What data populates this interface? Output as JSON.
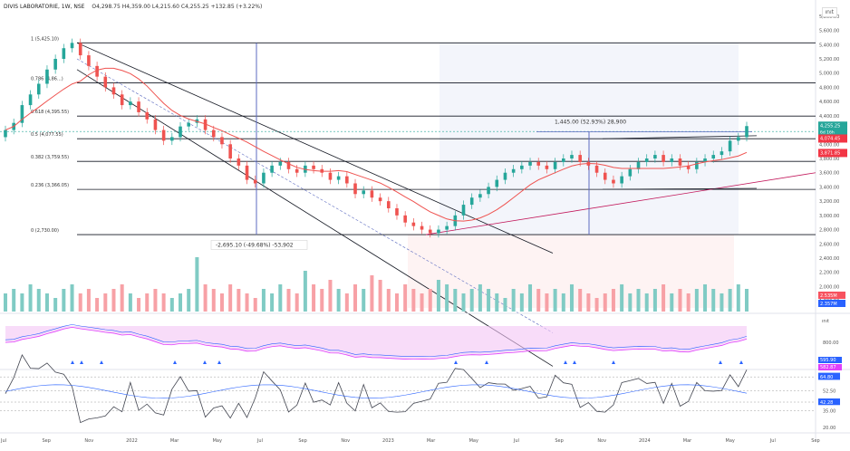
{
  "header": {
    "symbol": "DIVIS LABORATORIE, 1W, NSE",
    "ohlc": "O4,298.75 H4,359.00 L4,215.60 C4,255.25 +132.85 (+3.22%)",
    "scale_button": "ınıt"
  },
  "price_axis": {
    "labels": [
      "5,800.00",
      "5,600.00",
      "5,400.00",
      "5,200.00",
      "5,000.00",
      "4,800.00",
      "4,600.00",
      "4,400.00",
      "4,200.00",
      "4,000.00",
      "3,800.00",
      "3,600.00",
      "3,400.00",
      "3,200.00",
      "3,000.00",
      "2,800.00",
      "2,600.00",
      "2,400.00",
      "2,200.00",
      "2,000.00",
      "1,800.00"
    ],
    "badges": [
      {
        "text": "4,255.25",
        "sub": "6d 16h",
        "color": "#26a69a"
      },
      {
        "text": "4,074.45",
        "color": "#f23645"
      },
      {
        "text": "3,871.85",
        "color": "#f23645"
      }
    ]
  },
  "volume_axis": {
    "badges": [
      {
        "text": "2.535M",
        "color": "#f7525f"
      },
      {
        "text": "2.357M",
        "color": "#2962ff"
      }
    ]
  },
  "indicator1_axis": {
    "labels": [
      "800.00"
    ],
    "badges": [
      {
        "text": "595.90",
        "color": "#2962ff"
      },
      {
        "text": "582.87",
        "color": "#e040fb"
      }
    ],
    "scale_button": "ınıt"
  },
  "indicator2_axis": {
    "labels": [
      "65.00",
      "52.50",
      "42.50",
      "35.00",
      "20.00"
    ],
    "badges": [
      {
        "text": "65.46",
        "color": "#2962ff"
      },
      {
        "text": "64.80",
        "color": "#2962ff"
      },
      {
        "text": "42.50",
        "color": "#2962ff"
      },
      {
        "text": "42.28",
        "color": "#2962ff"
      }
    ]
  },
  "time_axis": {
    "labels": [
      "Jul",
      "Sep",
      "Nov",
      "2022",
      "Mar",
      "May",
      "Jul",
      "Sep",
      "Nov",
      "2023",
      "Mar",
      "May",
      "Jul",
      "Sep",
      "Nov",
      "2024",
      "Mar",
      "May",
      "Jul",
      "Sep"
    ]
  },
  "fib_levels": [
    {
      "label": "1 (5,425.10)",
      "price": 5425.1
    },
    {
      "label": "0.786 (4,86...)",
      "price": 4862
    },
    {
      "label": "0.618 (4,395.55)",
      "price": 4395.55
    },
    {
      "label": "0.5 (4,077.55)",
      "price": 4077.55
    },
    {
      "label": "0.382 (3,759.55)",
      "price": 3759.55
    },
    {
      "label": "0.236 (3,366.05)",
      "price": 3366.05
    },
    {
      "label": "0 (2,730.00)",
      "price": 2730.0
    }
  ],
  "annotations": {
    "down_move": "-2,695.10 (-49.68%) -53,902",
    "up_move": "1,445.00 (52.93%) 28,900"
  },
  "colors": {
    "up": "#26a69a",
    "down": "#ef5350",
    "up_dark": "#089981",
    "ma": "#ef5350",
    "channel": "#000000",
    "measure": "#5c6bc0",
    "rsi_line": "#2962ff",
    "osc_line": "#434651",
    "pink": "#e040fb"
  },
  "chart_data": {
    "type": "candlestick",
    "timeframe": "1W",
    "symbol": "DIVIS LABORATORIE",
    "exchange": "NSE",
    "price_axis_range": [
      1700,
      5900
    ],
    "last": {
      "open": 4298.75,
      "high": 4359.0,
      "low": 4215.6,
      "close": 4255.25,
      "change": 132.85,
      "change_pct": 3.22
    },
    "closes_approx": [
      4200,
      4300,
      4550,
      4700,
      4850,
      5050,
      5200,
      5350,
      5425,
      5250,
      5100,
      4950,
      4800,
      4700,
      4550,
      4600,
      4450,
      4350,
      4200,
      4050,
      4100,
      4250,
      4300,
      4350,
      4200,
      4100,
      4000,
      3800,
      3700,
      3500,
      3450,
      3600,
      3700,
      3750,
      3650,
      3600,
      3700,
      3650,
      3600,
      3500,
      3550,
      3450,
      3300,
      3350,
      3250,
      3200,
      3100,
      3000,
      2900,
      2850,
      2800,
      2750,
      2800,
      2850,
      3000,
      3150,
      3250,
      3300,
      3400,
      3500,
      3600,
      3650,
      3700,
      3750,
      3700,
      3650,
      3750,
      3800,
      3850,
      3750,
      3700,
      3600,
      3500,
      3450,
      3550,
      3650,
      3750,
      3800,
      3850,
      3750,
      3800,
      3700,
      3650,
      3750,
      3800,
      3850,
      3900,
      4050,
      4100,
      4255.25
    ],
    "volume_axis_range": [
      0,
      12
    ],
    "volumes_approx": [
      4,
      5,
      4,
      6,
      5,
      4,
      3,
      5,
      6,
      4,
      5,
      3,
      4,
      5,
      6,
      4,
      3,
      4,
      5,
      4,
      3,
      4,
      5,
      12,
      6,
      5,
      4,
      6,
      5,
      4,
      3,
      5,
      4,
      6,
      5,
      4,
      9,
      6,
      5,
      7,
      5,
      4,
      6,
      5,
      8,
      7,
      5,
      4,
      6,
      5,
      4,
      5,
      7,
      6,
      5,
      4,
      5,
      6,
      5,
      4,
      3,
      5,
      4,
      6,
      5,
      4,
      5,
      4,
      6,
      5,
      4,
      3,
      4,
      5,
      6,
      4,
      5,
      4,
      5,
      6,
      4,
      5,
      4,
      5,
      6,
      5,
      4,
      5,
      6,
      5
    ]
  }
}
